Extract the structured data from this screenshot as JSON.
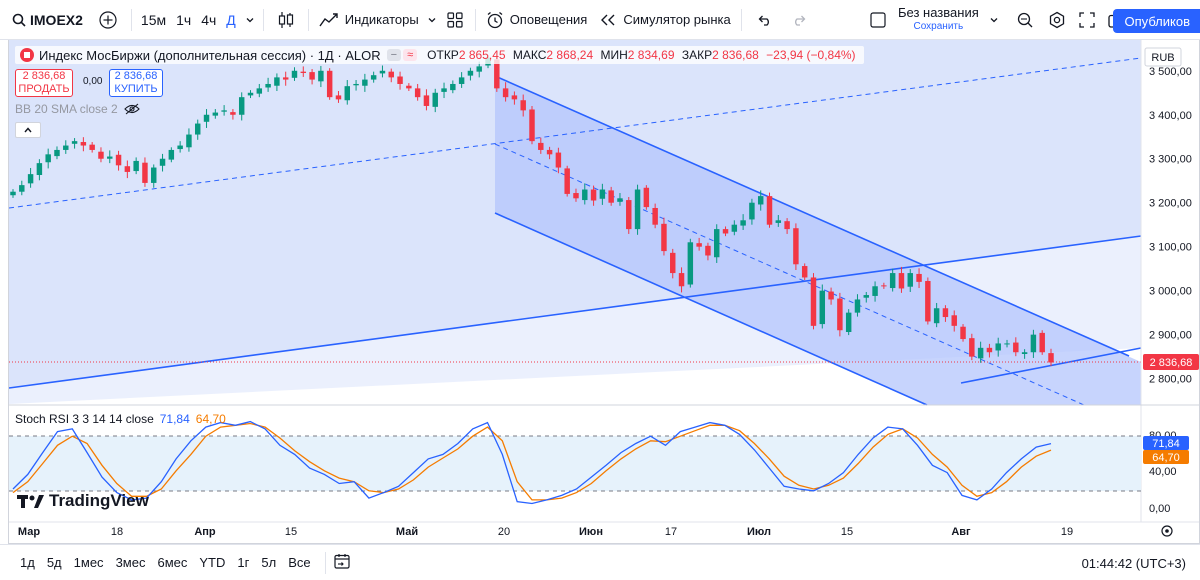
{
  "toolbar": {
    "symbol": "IMOEX2",
    "timeframes": [
      "15м",
      "1ч",
      "4ч",
      "Д"
    ],
    "active_timeframe": "Д",
    "indicators_label": "Индикаторы",
    "alerts_label": "Оповещения",
    "replay_label": "Симулятор рынка",
    "layout_name": "Без названия",
    "layout_save": "Сохранить",
    "publish_label": "Опубликов"
  },
  "legend": {
    "title": "Индекс МосБиржи (дополнительная сессия) · 1Д · ALOR",
    "open_label": "ОТКР",
    "open": "2 865,45",
    "high_label": "МАКС",
    "high": "2 868,24",
    "low_label": "МИН",
    "low": "2 834,69",
    "close_label": "ЗАКР",
    "close": "2 836,68",
    "change": "−23,94 (−0,84%)"
  },
  "trade": {
    "sell_price": "2 836,68",
    "sell_label": "ПРОДАТЬ",
    "spread": "0,00",
    "buy_price": "2 836,68",
    "buy_label": "КУПИТЬ"
  },
  "bb_legend": "BB 20 SMA close 2",
  "rsi": {
    "label": "Stoch RSI 3 3 14 14 close",
    "k_value": "71,84",
    "d_value": "64,70",
    "k_color": "#2962ff",
    "d_color": "#f57c00",
    "axis_ticks": [
      "80,00",
      "40,00",
      "0,00"
    ]
  },
  "price_axis": {
    "currency": "RUB",
    "ticks": [
      "3 500,00",
      "3 400,00",
      "3 300,00",
      "3 200,00",
      "3 100,00",
      "3 000,00",
      "2 900,00",
      "2 800,00"
    ],
    "last_price": "2 836,68"
  },
  "time_axis": {
    "labels": [
      "Мар",
      "18",
      "Апр",
      "15",
      "Май",
      "20",
      "Июн",
      "17",
      "Июл",
      "15",
      "Авг",
      "19"
    ],
    "bold_labels": [
      "Мар",
      "Апр",
      "Май",
      "Июн",
      "Июл",
      "Авг"
    ]
  },
  "logo_text": "TradingView",
  "bottom": {
    "ranges": [
      "1д",
      "5д",
      "1мес",
      "3мес",
      "6мес",
      "YTD",
      "1г",
      "5л",
      "Все"
    ],
    "clock": "01:44:42 (UTC+3)"
  },
  "colors": {
    "up": "#089981",
    "down": "#f23645",
    "accent": "#2962ff",
    "channel_fill": "#b9c8ff",
    "page_bg_fill": "#dbe4fb"
  },
  "chart_data": {
    "type": "candlestick",
    "symbol": "IMOEX2",
    "interval": "1D",
    "ylim": [
      2740,
      3570
    ],
    "close": [
      3225,
      3240,
      3265,
      3290,
      3310,
      3320,
      3330,
      3340,
      3330,
      3320,
      3300,
      3305,
      3285,
      3270,
      3295,
      3245,
      3280,
      3300,
      3320,
      3330,
      3355,
      3380,
      3400,
      3405,
      3410,
      3400,
      3440,
      3450,
      3460,
      3470,
      3485,
      3480,
      3500,
      3495,
      3480,
      3500,
      3440,
      3435,
      3465,
      3470,
      3480,
      3490,
      3500,
      3485,
      3470,
      3460,
      3440,
      3420,
      3450,
      3460,
      3470,
      3485,
      3500,
      3510,
      3530,
      3460,
      3440,
      3435,
      3410,
      3340,
      3320,
      3310,
      3280,
      3220,
      3210,
      3230,
      3205,
      3230,
      3200,
      3210,
      3140,
      3230,
      3190,
      3150,
      3090,
      3040,
      3010,
      3110,
      3100,
      3080,
      3140,
      3130,
      3150,
      3160,
      3200,
      3215,
      3150,
      3160,
      3140,
      3060,
      3030,
      2920,
      3000,
      2980,
      2910,
      2950,
      2980,
      2990,
      3010,
      3010,
      3040,
      3005,
      3040,
      3020,
      2930,
      2960,
      2940,
      2920,
      2890,
      2850,
      2870,
      2860,
      2880,
      2880,
      2860,
      2860,
      2900,
      2860,
      2836.68
    ],
    "open_approx": "each candle opens near the prior close",
    "indicators": {
      "bollinger_bands": "BB 20 SMA close 2",
      "stoch_rsi": {
        "params": "3 3 14 14 close",
        "k_last": 71.84,
        "d_last": 64.7,
        "k": [
          22,
          38,
          62,
          85,
          88,
          62,
          35,
          18,
          10,
          12,
          30,
          55,
          75,
          90,
          95,
          92,
          96,
          88,
          70,
          60,
          45,
          38,
          28,
          30,
          12,
          18,
          25,
          40,
          55,
          60,
          72,
          88,
          95,
          60,
          8,
          6,
          10,
          15,
          22,
          35,
          48,
          62,
          72,
          80,
          70,
          85,
          90,
          95,
          92,
          82,
          65,
          45,
          25,
          22,
          20,
          28,
          40,
          60,
          78,
          90,
          88,
          70,
          48,
          40,
          15,
          10,
          22,
          40,
          55,
          68,
          71.84
        ],
        "d": [
          18,
          30,
          50,
          70,
          80,
          72,
          48,
          28,
          14,
          14,
          22,
          42,
          60,
          80,
          90,
          92,
          94,
          90,
          78,
          64,
          52,
          42,
          34,
          30,
          20,
          18,
          22,
          32,
          46,
          56,
          66,
          80,
          90,
          75,
          30,
          10,
          10,
          12,
          18,
          28,
          42,
          55,
          66,
          75,
          74,
          80,
          86,
          92,
          92,
          86,
          72,
          55,
          36,
          26,
          22,
          26,
          34,
          50,
          68,
          82,
          88,
          78,
          60,
          46,
          26,
          14,
          18,
          30,
          46,
          58,
          64.7
        ]
      }
    },
    "drawings": [
      "falling channel (upper, lower, dashed median)",
      "rising support trendline",
      "dashed rising parallel line",
      "short rising support line",
      "last-price dotted line at 2836.68"
    ]
  }
}
